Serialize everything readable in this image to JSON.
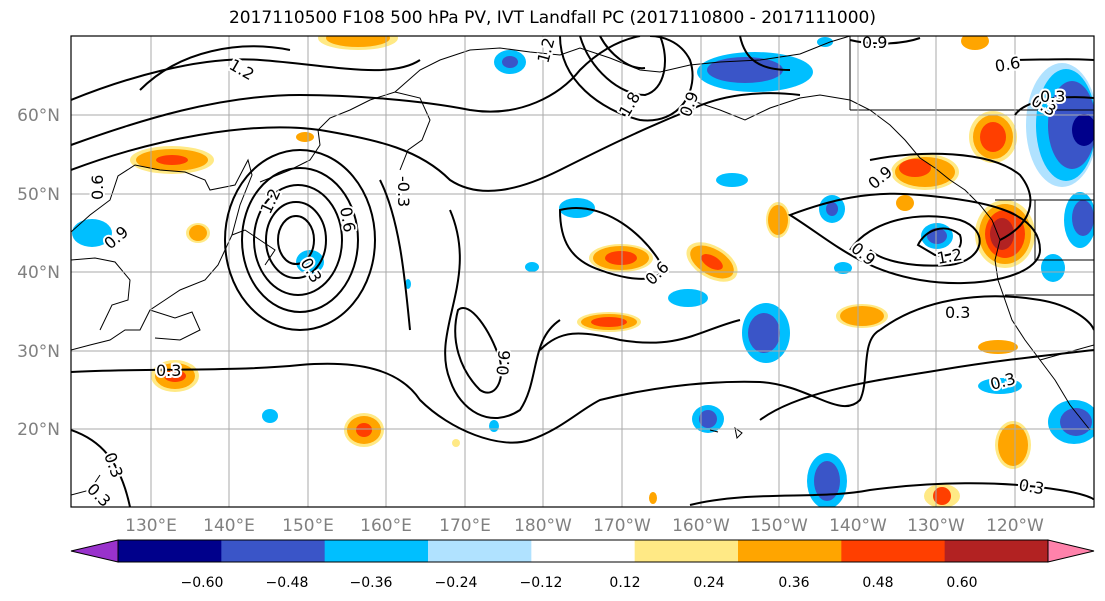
{
  "title": "2017110500 F108 500 hPa PV, IVT Landfall PC (2017110800 - 2017111000)",
  "map": {
    "lat_labels": [
      "60°N",
      "50°N",
      "40°N",
      "30°N",
      "20°N"
    ],
    "lon_labels": [
      "130°E",
      "140°E",
      "150°E",
      "160°E",
      "170°E",
      "180°W",
      "170°W",
      "160°W",
      "150°W",
      "140°W",
      "130°W",
      "120°W"
    ],
    "contour_labels": [
      "1.2",
      "1.2",
      "0.9",
      "1.8",
      "0.9",
      "1.2",
      "-0.3",
      "0.6",
      "0.6",
      "0.9",
      "0.3",
      "0.3",
      "0.9",
      "0.3",
      "0.6",
      "0.6",
      "0.9",
      "1.2",
      "0.6",
      "0.3",
      "0.3",
      "0.3",
      "0.3",
      "0.3",
      "0.3"
    ]
  },
  "colorbar": {
    "ticks": [
      "−0.60",
      "−0.48",
      "−0.36",
      "−0.24",
      "−0.12",
      "0.12",
      "0.24",
      "0.36",
      "0.48",
      "0.60"
    ],
    "colors": [
      "#9932cc",
      "#00008b",
      "#3a55c8",
      "#00bfff",
      "#b0e2ff",
      "#ffffff",
      "#ffe985",
      "#ffa500",
      "#ff3f00",
      "#b22222",
      "#ff82ab"
    ]
  }
}
